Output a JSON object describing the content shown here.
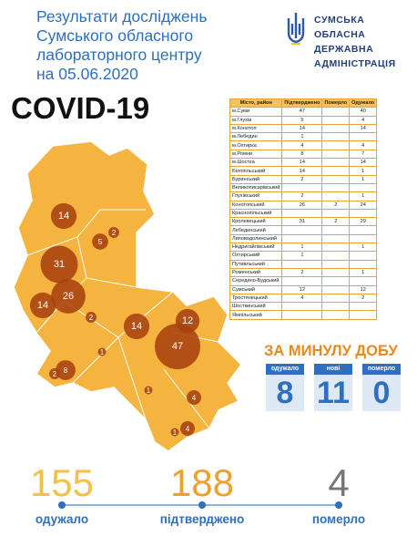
{
  "header": {
    "title_lines": [
      "Результати досліджень",
      "Сумського обласного",
      "лабораторного центру",
      "на 05.06.2020"
    ],
    "org_lines": [
      "СУМСЬКА",
      "ОБЛАСНА",
      "ДЕРЖАВНА",
      "АДМІНІСТРАЦІЯ"
    ],
    "headline": "COVID-19"
  },
  "table": {
    "columns": [
      "Місто, район",
      "Підтверджено",
      "Померло",
      "Одужало"
    ],
    "rows": [
      [
        "м.Суми",
        47,
        null,
        40
      ],
      [
        "м.Глухів",
        5,
        null,
        4
      ],
      [
        "м.Конотоп",
        14,
        null,
        14
      ],
      [
        "м.Лебедин",
        1,
        null,
        null
      ],
      [
        "м.Охтирка",
        4,
        null,
        4
      ],
      [
        "м.Ромни",
        8,
        null,
        7
      ],
      [
        "м.Шостка",
        14,
        null,
        14
      ],
      [
        "Білопільський",
        14,
        null,
        1
      ],
      [
        "Буринський",
        2,
        null,
        1
      ],
      [
        "Великописарівський",
        null,
        null,
        null
      ],
      [
        "Глухівський",
        2,
        null,
        1
      ],
      [
        "Конотопський",
        26,
        2,
        24
      ],
      [
        "Краснопільський",
        null,
        null,
        null
      ],
      [
        "Кролевецький",
        31,
        2,
        29
      ],
      [
        "Лебединський",
        null,
        null,
        null
      ],
      [
        "Липоводолинський",
        null,
        null,
        null
      ],
      [
        "Недригайлівський",
        1,
        null,
        1
      ],
      [
        "Охтирський",
        1,
        null,
        null
      ],
      [
        "Путивльський",
        null,
        null,
        null
      ],
      [
        "Роменський",
        2,
        null,
        1
      ],
      [
        "Середино-Будський",
        null,
        null,
        null
      ],
      [
        "Сумський",
        12,
        null,
        12
      ],
      [
        "Тростянецький",
        4,
        null,
        2
      ],
      [
        "Шосткинський",
        null,
        null,
        null
      ],
      [
        "Ямпільський",
        null,
        null,
        null
      ]
    ]
  },
  "daily": {
    "title": "ЗА МИНУЛУ ДОБУ",
    "items": [
      {
        "label": "одужало",
        "value": 8
      },
      {
        "label": "нові",
        "value": 11
      },
      {
        "label": "померло",
        "value": 0
      }
    ]
  },
  "map": {
    "bubbles": [
      14,
      5,
      2,
      31,
      14,
      26,
      2,
      14,
      12,
      47,
      1,
      2,
      8,
      1,
      4,
      1,
      4
    ]
  },
  "totals": [
    {
      "value": 155,
      "label": "одужало"
    },
    {
      "value": 188,
      "label": "підтверджено"
    },
    {
      "value": 4,
      "label": "померло"
    }
  ]
}
